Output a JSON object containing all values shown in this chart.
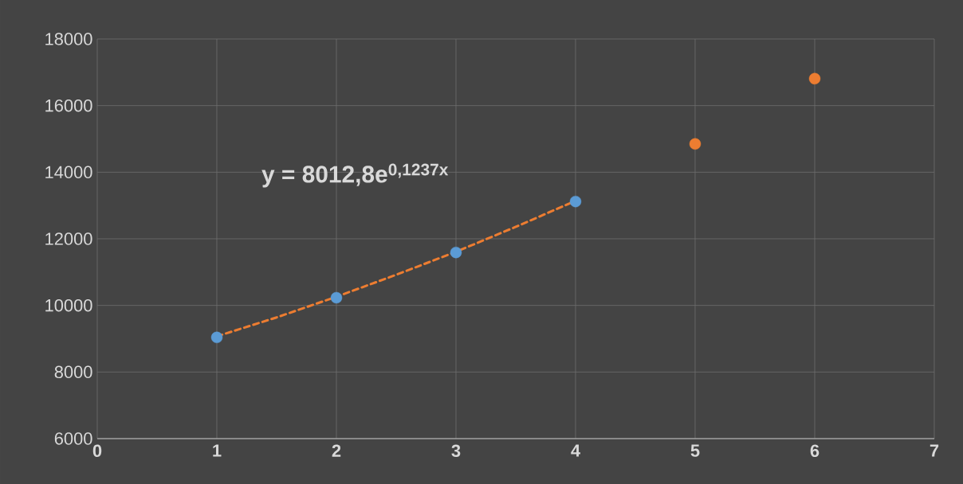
{
  "chart_data": {
    "type": "scatter",
    "xlim": [
      0,
      7
    ],
    "xticks": [
      0,
      1,
      2,
      3,
      4,
      5,
      6,
      7
    ],
    "ylim": [
      6000,
      18000
    ],
    "yticks": [
      6000,
      8000,
      10000,
      12000,
      14000,
      16000,
      18000
    ],
    "grid": true,
    "marker": "circle",
    "annotations": [
      "y = 8012,8e$^{0,1237x}$"
    ],
    "series": [
      {
        "type": "scatter",
        "x": [
          1,
          2,
          3,
          4,
          5,
          6
        ],
        "values": [
          9040,
          10230,
          11590,
          13120,
          14850,
          16810
        ],
        "colors": [
          "#5b9bd5",
          "#5b9bd5",
          "#5b9bd5",
          "#5b9bd5",
          "#ed7d31",
          "#ed7d31"
        ]
      },
      {
        "type": "line",
        "x": [
          1,
          1.5,
          2,
          2.5,
          3,
          3.5,
          4
        ],
        "values": [
          9070,
          9640,
          10260,
          10920,
          11610,
          12360,
          13140
        ],
        "color": "#ed7d31",
        "line_style": "dashed",
        "marker": "none"
      }
    ]
  }
}
